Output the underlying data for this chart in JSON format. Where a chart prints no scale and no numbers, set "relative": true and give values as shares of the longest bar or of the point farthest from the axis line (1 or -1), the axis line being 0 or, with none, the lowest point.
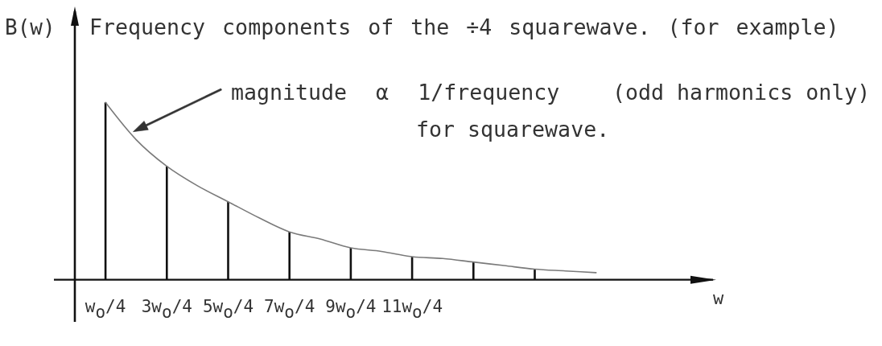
{
  "chart_data": {
    "type": "bar",
    "title": "Frequency components of the ÷4 squarewave. (for example)",
    "ylabel": "B(w)",
    "relative": true,
    "categories": [
      "w$_{o}$/4",
      null,
      "3w$_{o}$/4",
      null,
      "5w$_{o}$/4",
      null,
      "7w$_{o}$/4",
      null,
      "9w$_{o}$/4",
      null,
      "11w$_{o}$/4",
      null,
      null,
      null,
      null,
      null,
      null
    ],
    "series": [
      {
        "color": "#111111",
        "values": [
          1,
          null,
          0.64,
          null,
          0.44,
          null,
          0.27,
          null,
          0.18,
          null,
          0.13,
          null,
          0.1,
          null,
          0.06,
          null,
          null
        ]
      },
      {
        "type": "line",
        "color": "#7a7a7a",
        "values": [
          1,
          0.79,
          0.64,
          0.53,
          0.44,
          0.35,
          0.27,
          0.23,
          0.18,
          0.16,
          0.13,
          0.12,
          0.1,
          0.08,
          0.06,
          0.05,
          0.04
        ]
      }
    ],
    "annotations": [
      "magnitude α 1/frequency",
      "(odd harmonics only)",
      "for squarewave.",
      "w"
    ]
  }
}
